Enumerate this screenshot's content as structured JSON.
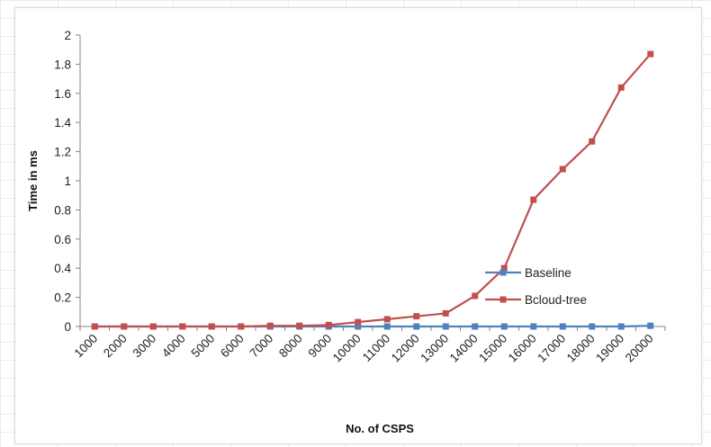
{
  "chart_data": {
    "type": "line",
    "title": "",
    "xlabel": "No. of CSPS",
    "ylabel": "Time in ms",
    "categories": [
      "1000",
      "2000",
      "3000",
      "4000",
      "5000",
      "6000",
      "7000",
      "8000",
      "9000",
      "10000",
      "11000",
      "12000",
      "13000",
      "14000",
      "15000",
      "16000",
      "17000",
      "18000",
      "19000",
      "20000"
    ],
    "ylim": [
      0,
      2
    ],
    "yticks": [
      "0",
      "0.2",
      "0.4",
      "0.6",
      "0.8",
      "1",
      "1.2",
      "1.4",
      "1.6",
      "1.8",
      "2"
    ],
    "grid": false,
    "legend_position": "right",
    "series": [
      {
        "name": "Baseline",
        "color": "#4f81bd",
        "marker": "square",
        "values": [
          0,
          0,
          0,
          0,
          0,
          0,
          0,
          0,
          0,
          0,
          0,
          0,
          0,
          0,
          0,
          0,
          0,
          0,
          0,
          0.005
        ]
      },
      {
        "name": "Bcloud-tree",
        "color": "#c0504d",
        "marker": "square",
        "values": [
          0,
          0,
          0,
          0,
          0,
          0,
          0.005,
          0.005,
          0.01,
          0.03,
          0.05,
          0.07,
          0.09,
          0.21,
          0.4,
          0.87,
          1.08,
          1.27,
          1.64,
          1.87
        ]
      }
    ]
  }
}
